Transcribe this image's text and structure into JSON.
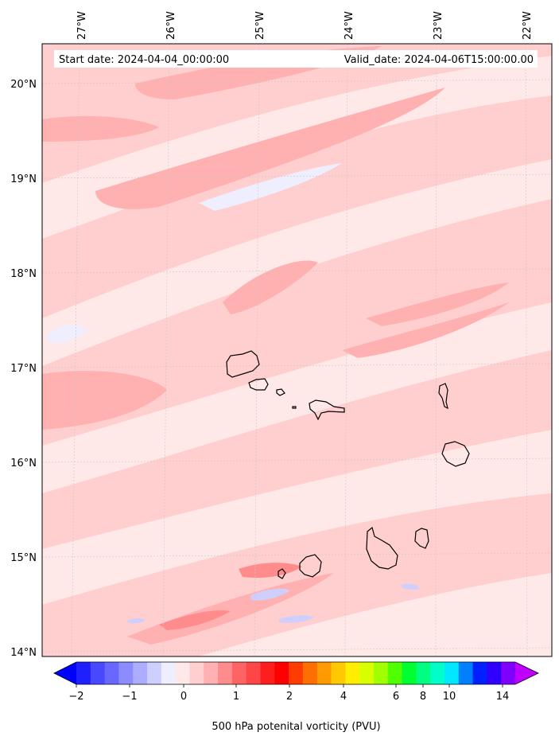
{
  "header": {
    "start_date": "Start date: 2024-04-04_00:00:00",
    "valid_date": "Valid_date: 2024-04-06T15:00:00.00"
  },
  "map": {
    "lon_labels": [
      "27°W",
      "26°W",
      "25°W",
      "24°W",
      "23°W",
      "22°W"
    ],
    "lat_labels": [
      "20°N",
      "19°N",
      "18°N",
      "17°N",
      "16°N",
      "15°N",
      "14°N"
    ],
    "islands": [
      "Santo Antão",
      "São Vicente",
      "Santa Luzia",
      "Branco",
      "São Nicolau",
      "Sal",
      "Boa Vista",
      "Maio",
      "Santiago",
      "Fogo",
      "Brava"
    ]
  },
  "colorbar": {
    "label": "500 hPa potenital vorticity (PVU)",
    "tick_labels": [
      "−2",
      "−1",
      "0",
      "1",
      "2",
      "4",
      "6",
      "8",
      "10",
      "14"
    ],
    "colors": [
      "#0000ff",
      "#2020ff",
      "#4848ff",
      "#6868ff",
      "#8c8cff",
      "#adadff",
      "#cfcfff",
      "#eeeeff",
      "#ffe8e8",
      "#ffcece",
      "#ffb0b0",
      "#ff8c8c",
      "#ff6464",
      "#ff4646",
      "#ff1e1e",
      "#ff0000",
      "#ff3c00",
      "#ff6e00",
      "#ff9a00",
      "#ffc800",
      "#ffee00",
      "#d8ff00",
      "#a0ff00",
      "#50ff00",
      "#00ff30",
      "#00ff80",
      "#00ffc8",
      "#00e8ff",
      "#0080ff",
      "#0020ff",
      "#3000ff",
      "#8000ff",
      "#c000ff"
    ],
    "field_colors": {
      "light": "#ffe8e8",
      "mid": "#ffcece",
      "strong": "#ffb0b0",
      "peak": "#ff8c8c",
      "neg": "#eeeeff",
      "neg2": "#cfcfff"
    }
  }
}
